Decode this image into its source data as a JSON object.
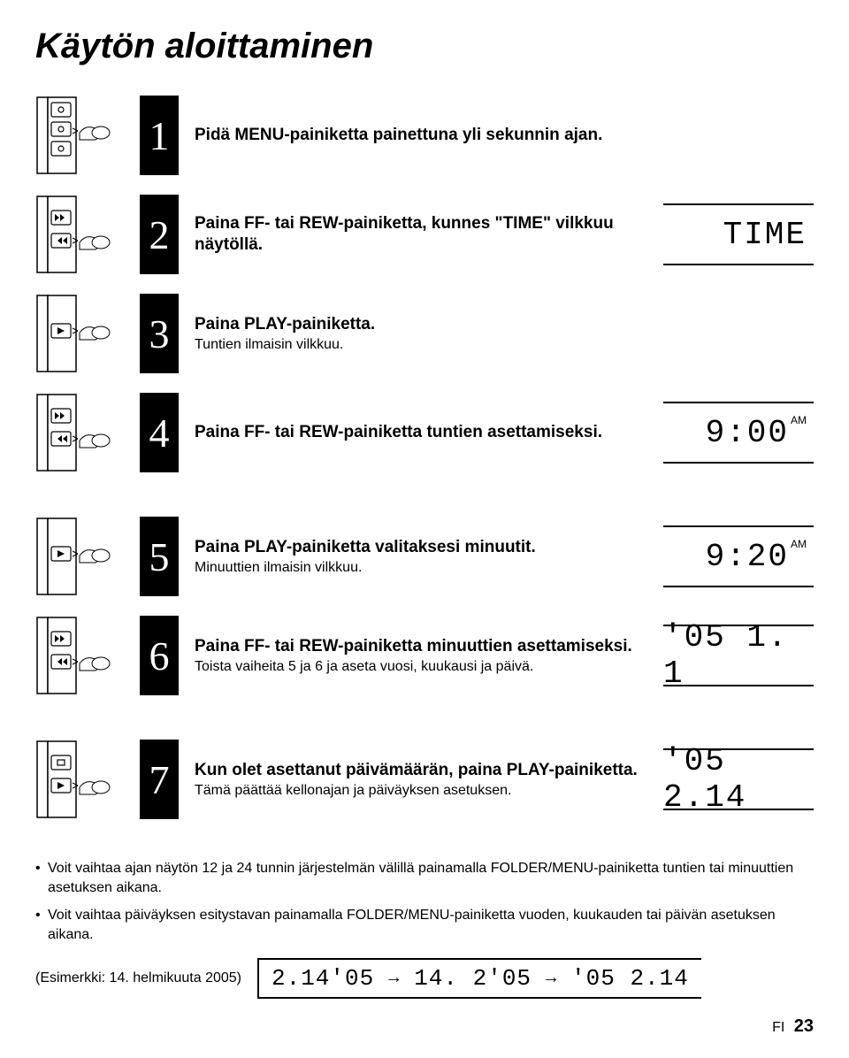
{
  "title": "Käytön aloittaminen",
  "steps": [
    {
      "num": "1",
      "bold": "Pidä MENU-painiketta painettuna yli sekunnin ajan.",
      "sub": "",
      "lcd": null,
      "device": "single"
    },
    {
      "num": "2",
      "bold": "Paina FF- tai REW-painiketta, kunnes \"TIME\" vilkkuu näytöllä.",
      "sub": "",
      "lcd": {
        "text": "TIME",
        "ampm": ""
      },
      "device": "double"
    },
    {
      "num": "3",
      "bold": "Paina PLAY-painiketta.",
      "sub": "Tuntien ilmaisin vilkkuu.",
      "lcd": null,
      "device": "play"
    },
    {
      "num": "4",
      "bold": "Paina FF- tai REW-painiketta tuntien asettamiseksi.",
      "sub": "",
      "lcd": {
        "text": "9:00",
        "ampm": "AM"
      },
      "device": "double"
    },
    {
      "num": "5",
      "bold": "Paina PLAY-painiketta valitaksesi minuutit.",
      "sub": "Minuuttien ilmaisin vilkkuu.",
      "lcd": {
        "text": "9:20",
        "ampm": "AM"
      },
      "device": "play"
    },
    {
      "num": "6",
      "bold": "Paina FF- tai REW-painiketta minuuttien asettamiseksi.",
      "sub": "Toista vaiheita 5 ja 6 ja aseta vuosi, kuukausi ja päivä.",
      "lcd": {
        "text": "'05  1. 1",
        "ampm": ""
      },
      "device": "double"
    },
    {
      "num": "7",
      "bold": "Kun olet asettanut päivämäärän, paina PLAY-painiketta.",
      "sub": "Tämä päättää kellonajan ja päiväyksen asetuksen.",
      "lcd": {
        "text": "'05  2.14",
        "ampm": ""
      },
      "device": "stopplay"
    }
  ],
  "notes": [
    "Voit vaihtaa ajan näytön 12 ja 24 tunnin järjestelmän välillä painamalla FOLDER/MENU-painiketta tuntien tai minuuttien asetuksen aikana.",
    "Voit vaihtaa päiväyksen esitystavan painamalla FOLDER/MENU-painiketta vuoden, kuukauden tai päivän asetuksen aikana."
  ],
  "example_label": "(Esimerkki: 14. helmikuuta 2005)",
  "date_formats": [
    "2.14'05",
    "14. 2'05",
    "'05  2.14"
  ],
  "footer_lang": "FI",
  "footer_page": "23"
}
